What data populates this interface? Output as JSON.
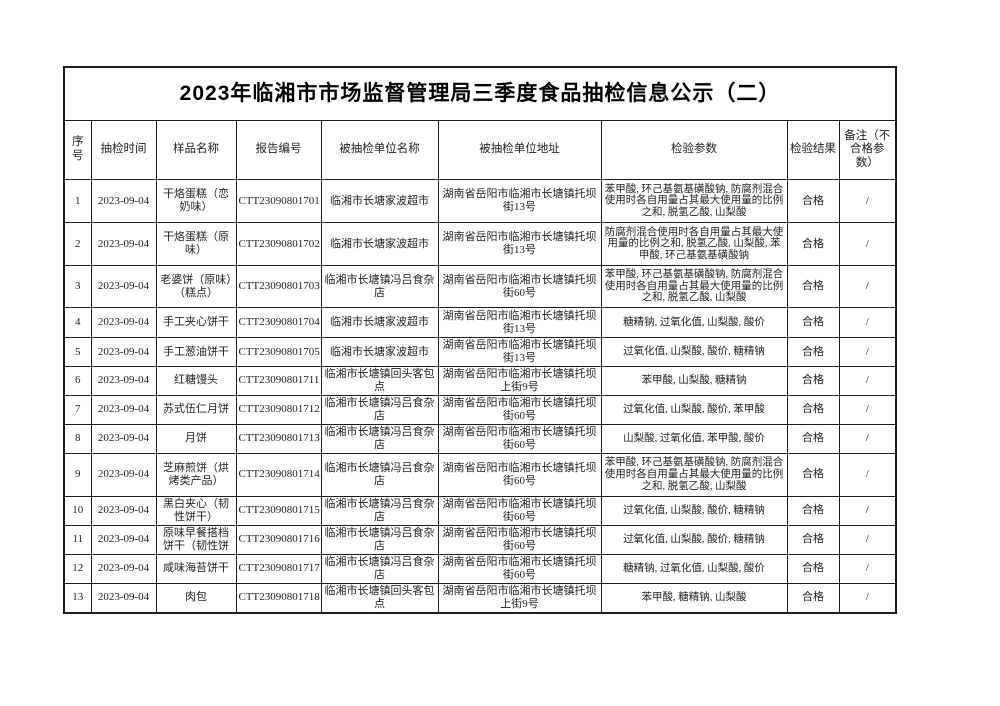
{
  "page": {
    "title": "2023年临湘市市场监督管理局三季度食品抽检信息公示（二）"
  },
  "table": {
    "headers": [
      "序号",
      "抽检时间",
      "样品名称",
      "报告编号",
      "被抽检单位名称",
      "被抽检单位地址",
      "检验参数",
      "检验结果",
      "备注（不合格参数）"
    ],
    "rows": [
      {
        "no": "1",
        "date": "2023-09-04",
        "sample": "干烙蛋糕（恋奶味）",
        "report": "CTT23090801701",
        "unit": "临湘市长塘家波超市",
        "address": "湖南省岳阳市临湘市长塘镇托坝街13号",
        "params": "苯甲酸, 环己基氨基磺酸钠, 防腐剂混合使用时各自用量占其最大使用量的比例之和, 脱氢乙酸, 山梨酸",
        "result": "合格",
        "remark": "/"
      },
      {
        "no": "2",
        "date": "2023-09-04",
        "sample": "干烙蛋糕（原味）",
        "report": "CTT23090801702",
        "unit": "临湘市长塘家波超市",
        "address": "湖南省岳阳市临湘市长塘镇托坝街13号",
        "params": "防腐剂混合使用时各自用量占其最大使用量的比例之和, 脱氢乙酸, 山梨酸, 苯甲酸, 环己基氨基磺酸钠",
        "result": "合格",
        "remark": "/"
      },
      {
        "no": "3",
        "date": "2023-09-04",
        "sample": "老婆饼（原味）（糕点）",
        "report": "CTT23090801703",
        "unit": "临湘市长塘镇冯吕食杂店",
        "address": "湖南省岳阳市临湘市长塘镇托坝街60号",
        "params": "苯甲酸, 环己基氨基磺酸钠, 防腐剂混合使用时各自用量占其最大使用量的比例之和, 脱氢乙酸, 山梨酸",
        "result": "合格",
        "remark": "/"
      },
      {
        "no": "4",
        "date": "2023-09-04",
        "sample": "手工夹心饼干",
        "report": "CTT23090801704",
        "unit": "临湘市长塘家波超市",
        "address": "湖南省岳阳市临湘市长塘镇托坝街13号",
        "params": "糖精钠, 过氧化值, 山梨酸, 酸价",
        "result": "合格",
        "remark": "/"
      },
      {
        "no": "5",
        "date": "2023-09-04",
        "sample": "手工葱油饼干",
        "report": "CTT23090801705",
        "unit": "临湘市长塘家波超市",
        "address": "湖南省岳阳市临湘市长塘镇托坝街13号",
        "params": "过氧化值, 山梨酸, 酸价, 糖精钠",
        "result": "合格",
        "remark": "/"
      },
      {
        "no": "6",
        "date": "2023-09-04",
        "sample": "红糖馒头",
        "report": "CTT23090801711",
        "unit": "临湘市长塘镇回头客包点",
        "address": "湖南省岳阳市临湘市长塘镇托坝上街9号",
        "params": "苯甲酸, 山梨酸, 糖精钠",
        "result": "合格",
        "remark": "/"
      },
      {
        "no": "7",
        "date": "2023-09-04",
        "sample": "苏式伍仁月饼",
        "report": "CTT23090801712",
        "unit": "临湘市长塘镇冯吕食杂店",
        "address": "湖南省岳阳市临湘市长塘镇托坝街60号",
        "params": "过氧化值, 山梨酸, 酸价, 苯甲酸",
        "result": "合格",
        "remark": "/"
      },
      {
        "no": "8",
        "date": "2023-09-04",
        "sample": "月饼",
        "report": "CTT23090801713",
        "unit": "临湘市长塘镇冯吕食杂店",
        "address": "湖南省岳阳市临湘市长塘镇托坝街60号",
        "params": "山梨酸, 过氧化值, 苯甲酸, 酸价",
        "result": "合格",
        "remark": "/"
      },
      {
        "no": "9",
        "date": "2023-09-04",
        "sample": "芝麻煎饼（烘烤类产品）",
        "report": "CTT23090801714",
        "unit": "临湘市长塘镇冯吕食杂店",
        "address": "湖南省岳阳市临湘市长塘镇托坝街60号",
        "params": "苯甲酸, 环己基氨基磺酸钠, 防腐剂混合使用时各自用量占其最大使用量的比例之和, 脱氢乙酸, 山梨酸",
        "result": "合格",
        "remark": "/"
      },
      {
        "no": "10",
        "date": "2023-09-04",
        "sample": "黑白夹心（韧性饼干）",
        "report": "CTT23090801715",
        "unit": "临湘市长塘镇冯吕食杂店",
        "address": "湖南省岳阳市临湘市长塘镇托坝街60号",
        "params": "过氧化值, 山梨酸, 酸价, 糖精钠",
        "result": "合格",
        "remark": "/"
      },
      {
        "no": "11",
        "date": "2023-09-04",
        "sample": "原味早餐搭档饼干（韧性饼",
        "report": "CTT23090801716",
        "unit": "临湘市长塘镇冯吕食杂店",
        "address": "湖南省岳阳市临湘市长塘镇托坝街60号",
        "params": "过氧化值, 山梨酸, 酸价, 糖精钠",
        "result": "合格",
        "remark": "/"
      },
      {
        "no": "12",
        "date": "2023-09-04",
        "sample": "咸味海苔饼干",
        "report": "CTT23090801717",
        "unit": "临湘市长塘镇冯吕食杂店",
        "address": "湖南省岳阳市临湘市长塘镇托坝街60号",
        "params": "糖精钠, 过氧化值, 山梨酸, 酸价",
        "result": "合格",
        "remark": "/"
      },
      {
        "no": "13",
        "date": "2023-09-04",
        "sample": "肉包",
        "report": "CTT23090801718",
        "unit": "临湘市长塘镇回头客包点",
        "address": "湖南省岳阳市临湘市长塘镇托坝上街9号",
        "params": "苯甲酸, 糖精钠, 山梨酸",
        "result": "合格",
        "remark": "/"
      }
    ]
  }
}
